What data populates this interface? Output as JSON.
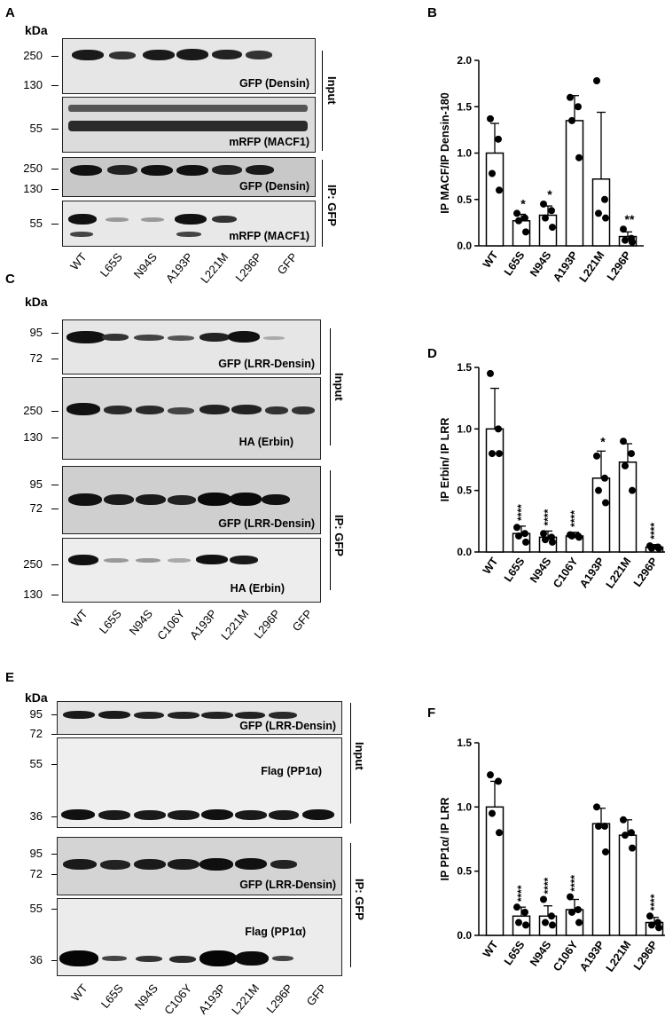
{
  "panels": {
    "A": "A",
    "B": "B",
    "C": "C",
    "D": "D",
    "E": "E",
    "F": "F"
  },
  "kda": "kDa",
  "panelA": {
    "markers": {
      "m250a": "250",
      "m130a": "130",
      "m55a": "55",
      "m250b": "250",
      "m130b": "130",
      "m55b": "55"
    },
    "blots": [
      "GFP (Densin)",
      "mRFP (MACF1)",
      "GFP (Densin)",
      "mRFP (MACF1)"
    ],
    "side": {
      "input": "Input",
      "ip": "IP: GFP"
    },
    "lanes": [
      "WT",
      "L65S",
      "N94S",
      "A193P",
      "L221M",
      "L296P",
      "GFP"
    ]
  },
  "panelC": {
    "markers": {
      "m95a": "95",
      "m72a": "72",
      "m250a": "250",
      "m130a": "130",
      "m95b": "95",
      "m72b": "72",
      "m250b": "250",
      "m130b": "130"
    },
    "blots": [
      "GFP (LRR-Densin)",
      "HA (Erbin)",
      "GFP (LRR-Densin)",
      "HA (Erbin)"
    ],
    "side": {
      "input": "Input",
      "ip": "IP: GFP"
    },
    "lanes": [
      "WT",
      "L65S",
      "N94S",
      "C106Y",
      "A193P",
      "L221M",
      "L296P",
      "GFP"
    ]
  },
  "panelE": {
    "markers": {
      "m95a": "95",
      "m72a": "72",
      "m55a": "55",
      "m36a": "36",
      "m95b": "95",
      "m72b": "72",
      "m55b": "55",
      "m36b": "36"
    },
    "blots": [
      "GFP (LRR-Densin)",
      "Flag (PP1α)",
      "GFP (LRR-Densin)",
      "Flag (PP1α)"
    ],
    "side": {
      "input": "Input",
      "ip": "IP: GFP"
    },
    "lanes": [
      "WT",
      "L65S",
      "N94S",
      "C106Y",
      "A193P",
      "L221M",
      "L296P",
      "GFP"
    ]
  },
  "chart_data": [
    {
      "type": "bar",
      "ylabel": "IP MACF/IP Densin-180",
      "ylim": [
        0,
        2.0
      ],
      "yticks": [
        "0.0",
        "0.5",
        "1.0",
        "1.5",
        "2.0"
      ],
      "categories": [
        "WT",
        "L65S",
        "N94S",
        "A193P",
        "L221M",
        "L296P"
      ],
      "values": [
        1.0,
        0.27,
        0.33,
        1.35,
        0.72,
        0.1
      ],
      "errors": [
        0.32,
        0.07,
        0.1,
        0.27,
        0.72,
        0.05
      ],
      "points": [
        [
          1.37,
          1.15,
          0.78,
          0.6
        ],
        [
          0.35,
          0.3,
          0.27,
          0.15
        ],
        [
          0.45,
          0.38,
          0.3,
          0.2
        ],
        [
          1.6,
          1.5,
          1.35,
          0.95
        ],
        [
          1.78,
          0.5,
          0.35,
          0.3
        ],
        [
          0.18,
          0.08,
          0.06,
          0.04
        ]
      ],
      "significance": [
        "",
        "*",
        "*",
        "",
        "",
        "**"
      ]
    },
    {
      "type": "bar",
      "ylabel": "IP Erbin/ IP LRR",
      "ylim": [
        0,
        1.5
      ],
      "yticks": [
        "0.0",
        "0.5",
        "1.0",
        "1.5"
      ],
      "categories": [
        "WT",
        "L65S",
        "N94S",
        "C106Y",
        "A193P",
        "L221M",
        "L296P"
      ],
      "values": [
        1.0,
        0.15,
        0.12,
        0.13,
        0.6,
        0.73,
        0.04
      ],
      "errors": [
        0.33,
        0.06,
        0.05,
        0.03,
        0.22,
        0.15,
        0.02
      ],
      "points": [
        [
          1.45,
          1.0,
          0.8,
          0.8
        ],
        [
          0.2,
          0.15,
          0.13,
          0.08
        ],
        [
          0.15,
          0.12,
          0.1,
          0.08
        ],
        [
          0.14,
          0.13,
          0.13,
          0.12
        ],
        [
          0.78,
          0.6,
          0.5,
          0.4
        ],
        [
          0.9,
          0.8,
          0.7,
          0.5
        ],
        [
          0.05,
          0.04,
          0.03,
          0.03
        ]
      ],
      "significance": [
        "",
        "****",
        "****",
        "****",
        "*",
        "",
        "****"
      ]
    },
    {
      "type": "bar",
      "ylabel": "IP PP1α/ IP LRR",
      "ylim": [
        0,
        1.5
      ],
      "yticks": [
        "0.0",
        "0.5",
        "1.0",
        "1.5"
      ],
      "categories": [
        "WT",
        "L65S",
        "N94S",
        "C106Y",
        "A193P",
        "L221M",
        "L296P"
      ],
      "values": [
        1.0,
        0.15,
        0.15,
        0.2,
        0.87,
        0.78,
        0.1
      ],
      "errors": [
        0.2,
        0.07,
        0.08,
        0.08,
        0.12,
        0.12,
        0.04
      ],
      "points": [
        [
          1.25,
          1.2,
          0.95,
          0.8
        ],
        [
          0.22,
          0.18,
          0.1,
          0.08
        ],
        [
          0.28,
          0.15,
          0.1,
          0.08
        ],
        [
          0.3,
          0.2,
          0.18,
          0.1
        ],
        [
          1.0,
          0.85,
          0.85,
          0.65
        ],
        [
          0.9,
          0.8,
          0.78,
          0.68
        ],
        [
          0.15,
          0.1,
          0.08,
          0.06
        ]
      ],
      "significance": [
        "",
        "****",
        "****",
        "****",
        "",
        "",
        "****"
      ]
    }
  ]
}
